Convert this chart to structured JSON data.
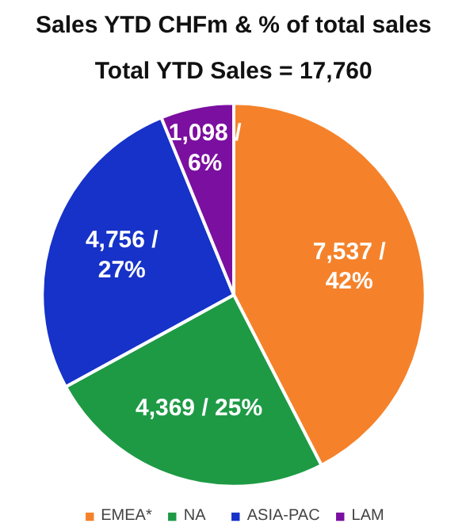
{
  "chart_data": {
    "type": "pie",
    "title": "Sales YTD CHFm & % of total sales",
    "subtitle": "Total YTD Sales = 17,760",
    "categories": [
      "EMEA*",
      "NA",
      "ASIA-PAC",
      "LAM"
    ],
    "values": [
      7537,
      4369,
      4756,
      1098
    ],
    "colors": [
      "#f5822a",
      "#1e9a45",
      "#1632c8",
      "#7b0fa0"
    ],
    "value_labels": [
      "7,537 /\n42%",
      "4,369 / 25%",
      "4,756 /\n27%",
      "1,098 /\n6%"
    ],
    "legend": "bottom"
  }
}
